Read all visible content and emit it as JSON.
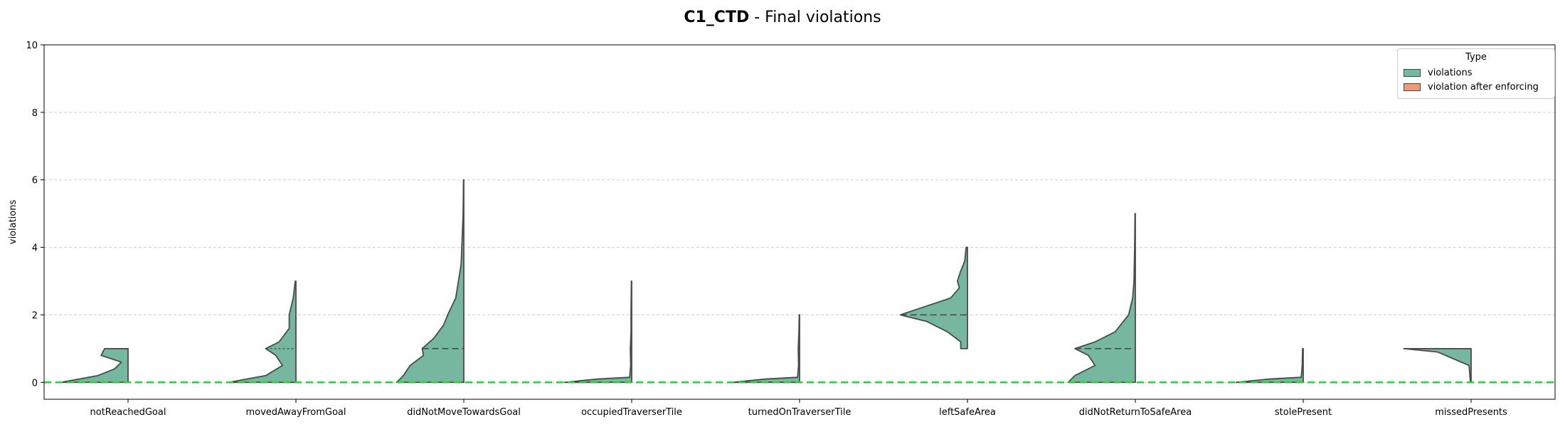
{
  "chart_data": {
    "type": "violin",
    "title_bold": "C1_CTD",
    "title_rest": " - Final violations",
    "ylabel": "violations",
    "ylim": [
      -0.5,
      10
    ],
    "yticks": [
      0,
      2,
      4,
      6,
      8,
      10
    ],
    "grid": "horizontal-dashed",
    "legend": {
      "title": "Type",
      "position": "top-right",
      "entries": [
        {
          "label": "violations",
          "color": "#76b7a0"
        },
        {
          "label": "violation after enforcing",
          "color": "#ec9a78"
        }
      ]
    },
    "reference_line": {
      "y": 0,
      "color": "#2ecc40",
      "style": "dashed"
    },
    "categories": [
      "notReachedGoal",
      "movedAwayFromGoal",
      "didNotMoveTowardsGoal",
      "occupiedTraverserTile",
      "turnedOnTraverserTile",
      "leftSafeArea",
      "didNotReturnToSafeArea",
      "stolePresent",
      "missedPresents"
    ],
    "series": [
      {
        "name": "violations",
        "color": "#76b7a0",
        "violins": [
          {
            "ymin": 0,
            "ymax": 1,
            "median": 1,
            "q": [
              0,
              1
            ],
            "profile": [
              [
                0,
                1.0
              ],
              [
                0.2,
                0.45
              ],
              [
                0.4,
                0.2
              ],
              [
                0.6,
                0.1
              ],
              [
                0.8,
                0.4
              ],
              [
                1,
                0.35
              ]
            ]
          },
          {
            "ymin": 0,
            "ymax": 3,
            "median": 0,
            "q": [
              0,
              1
            ],
            "profile": [
              [
                0,
                1.0
              ],
              [
                0.2,
                0.45
              ],
              [
                0.5,
                0.2
              ],
              [
                0.8,
                0.3
              ],
              [
                1.0,
                0.45
              ],
              [
                1.2,
                0.25
              ],
              [
                1.6,
                0.1
              ],
              [
                2.0,
                0.1
              ],
              [
                2.5,
                0.04
              ],
              [
                3.0,
                0.01
              ]
            ]
          },
          {
            "ymin": 0,
            "ymax": 6,
            "median": 1,
            "q": [
              0,
              1
            ],
            "profile": [
              [
                0,
                1.0
              ],
              [
                0.2,
                0.9
              ],
              [
                0.5,
                0.8
              ],
              [
                0.8,
                0.6
              ],
              [
                1.0,
                0.62
              ],
              [
                1.3,
                0.45
              ],
              [
                1.7,
                0.3
              ],
              [
                2.0,
                0.24
              ],
              [
                2.5,
                0.12
              ],
              [
                3.0,
                0.08
              ],
              [
                3.5,
                0.04
              ],
              [
                4.0,
                0.03
              ],
              [
                4.5,
                0.02
              ],
              [
                5.0,
                0.01
              ],
              [
                6.0,
                0.005
              ]
            ]
          },
          {
            "ymin": 0,
            "ymax": 3,
            "median": 0,
            "q": [
              0,
              0
            ],
            "profile": [
              [
                0,
                1.0
              ],
              [
                0.1,
                0.5
              ],
              [
                0.15,
                0.03
              ],
              [
                0.5,
                0.015
              ],
              [
                1.0,
                0.02
              ],
              [
                1.5,
                0.01
              ],
              [
                2.0,
                0.01
              ],
              [
                3.0,
                0.005
              ]
            ]
          },
          {
            "ymin": 0,
            "ymax": 2,
            "median": 0,
            "q": [
              0,
              0
            ],
            "profile": [
              [
                0,
                1.0
              ],
              [
                0.1,
                0.5
              ],
              [
                0.15,
                0.03
              ],
              [
                0.5,
                0.015
              ],
              [
                1.0,
                0.02
              ],
              [
                1.5,
                0.01
              ],
              [
                2.0,
                0.005
              ]
            ]
          },
          {
            "ymin": 1,
            "ymax": 4,
            "median": 2,
            "q": [
              2,
              2
            ],
            "profile": [
              [
                1.0,
                0.1
              ],
              [
                1.2,
                0.1
              ],
              [
                1.5,
                0.3
              ],
              [
                1.8,
                0.6
              ],
              [
                2.0,
                1.0
              ],
              [
                2.2,
                0.7
              ],
              [
                2.5,
                0.25
              ],
              [
                2.8,
                0.12
              ],
              [
                3.0,
                0.15
              ],
              [
                3.3,
                0.1
              ],
              [
                3.6,
                0.04
              ],
              [
                4.0,
                0.02
              ]
            ]
          },
          {
            "ymin": 0,
            "ymax": 5,
            "median": 1,
            "q": [
              0,
              1
            ],
            "profile": [
              [
                0,
                1.0
              ],
              [
                0.2,
                0.9
              ],
              [
                0.5,
                0.6
              ],
              [
                0.8,
                0.7
              ],
              [
                1.0,
                0.9
              ],
              [
                1.2,
                0.6
              ],
              [
                1.5,
                0.3
              ],
              [
                2.0,
                0.1
              ],
              [
                2.5,
                0.04
              ],
              [
                3.0,
                0.02
              ],
              [
                4.0,
                0.01
              ],
              [
                5.0,
                0.005
              ]
            ]
          },
          {
            "ymin": 0,
            "ymax": 1,
            "median": 0,
            "q": [
              0,
              0
            ],
            "profile": [
              [
                0,
                1.0
              ],
              [
                0.1,
                0.5
              ],
              [
                0.15,
                0.03
              ],
              [
                0.5,
                0.015
              ],
              [
                1.0,
                0.01
              ]
            ]
          },
          {
            "ymin": 0,
            "ymax": 1,
            "median": 1,
            "q": [
              1,
              1
            ],
            "profile": [
              [
                0,
                0.01
              ],
              [
                0.5,
                0.03
              ],
              [
                0.9,
                0.5
              ],
              [
                1.0,
                1.0
              ]
            ]
          }
        ]
      },
      {
        "name": "violation after enforcing",
        "color": "#ec9a78",
        "violins": []
      }
    ]
  }
}
